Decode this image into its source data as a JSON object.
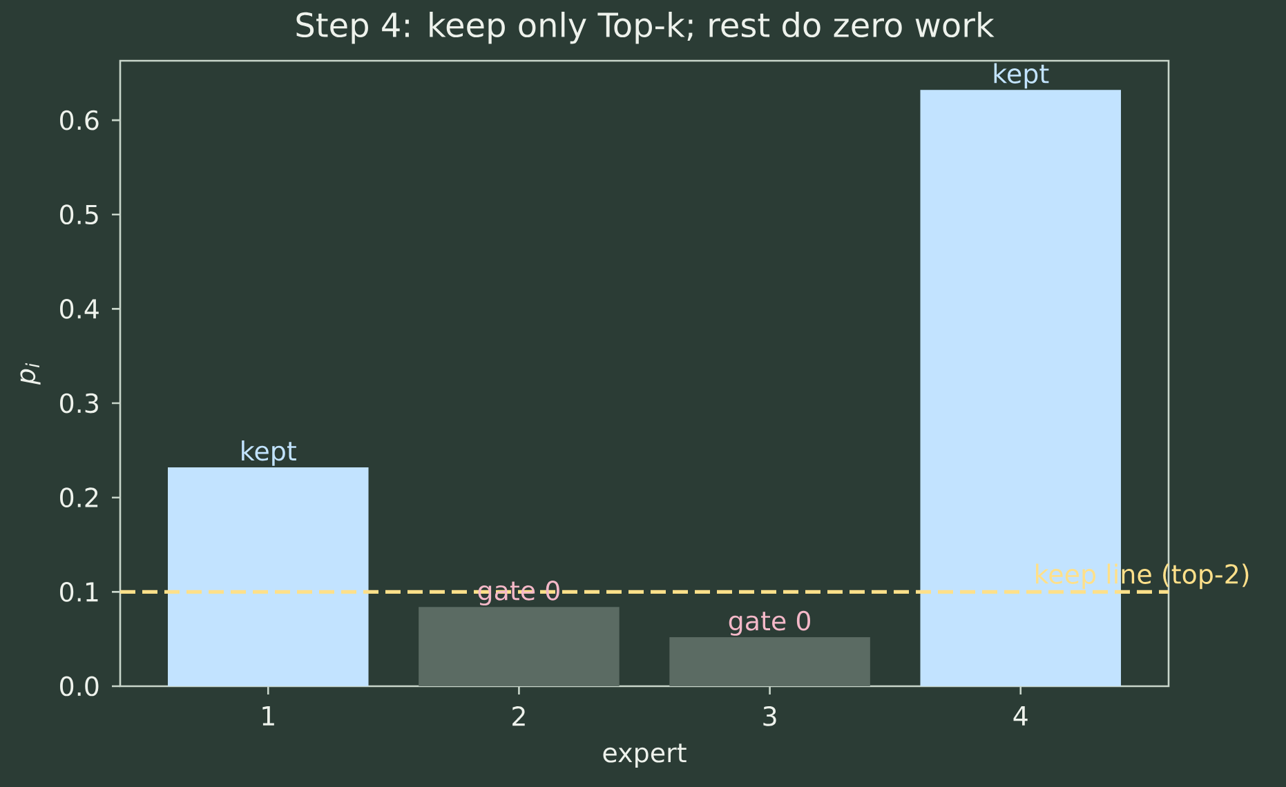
{
  "chart_data": {
    "type": "bar",
    "title": "Step 4: keep only Top-k; rest do zero work",
    "xlabel": "expert",
    "ylabel": "p$_{i}$",
    "categories": [
      "1",
      "2",
      "3",
      "4"
    ],
    "values": [
      0.232,
      0.084,
      0.052,
      0.632
    ],
    "colors": [
      "#c2e3ff",
      "#5b6b63",
      "#5b6b63",
      "#c2e3ff"
    ],
    "value_labels": [
      "kept",
      "gate 0",
      "gate 0",
      "kept"
    ],
    "ylim": [
      0,
      0.663
    ],
    "yticks": [
      {
        "value": 0,
        "label": "0.0"
      },
      0.1,
      0.2,
      0.3,
      0.4,
      0.5,
      0.6
    ],
    "ref_lines": [
      {
        "axis": "y",
        "value": 0.1,
        "label": "keep line (top-2)",
        "color": "#ffe08a",
        "line_style": "dashed"
      }
    ]
  }
}
